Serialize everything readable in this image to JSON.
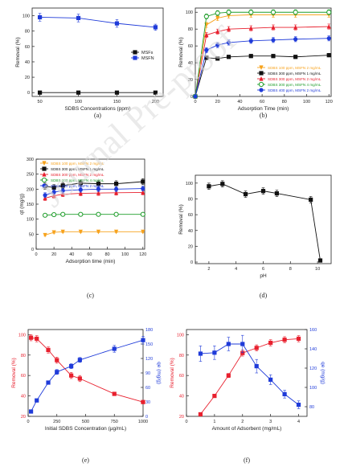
{
  "watermark": "Journal Pre-proof",
  "panels": [
    {
      "id": "a",
      "label": "(a)"
    },
    {
      "id": "b",
      "label": "(b)"
    },
    {
      "id": "c",
      "label": "(c)"
    },
    {
      "id": "d",
      "label": "(d)"
    },
    {
      "id": "e",
      "label": "(e)"
    },
    {
      "id": "f",
      "label": "(f)"
    }
  ],
  "chart_data": [
    {
      "panel": "a",
      "type": "line",
      "xlabel": "SDBS Concentrations (ppm)",
      "ylabel": "Removal (%)",
      "xlim": [
        40,
        210
      ],
      "ylim": [
        -5,
        110
      ],
      "xticks": [
        50,
        100,
        150,
        200
      ],
      "yticks": [
        0,
        20,
        40,
        60,
        80,
        100
      ],
      "legend": "right",
      "series": [
        {
          "name": "MSFs",
          "color": "#111111",
          "marker": "square",
          "x": [
            50,
            100,
            150,
            200
          ],
          "y": [
            0,
            0,
            0,
            0
          ],
          "err": [
            0,
            0,
            0,
            0
          ]
        },
        {
          "name": "MSFN",
          "color": "#1f3bd9",
          "marker": "square",
          "x": [
            50,
            100,
            150,
            200
          ],
          "y": [
            98,
            97,
            90,
            85
          ],
          "err": [
            5,
            5,
            5,
            4
          ]
        }
      ]
    },
    {
      "panel": "b",
      "type": "line",
      "xlabel": "Adsorption Time (min)",
      "ylabel": "Removal (%)",
      "xlim": [
        0,
        122
      ],
      "ylim": [
        0,
        105
      ],
      "xticks": [
        0,
        20,
        40,
        60,
        80,
        100,
        120
      ],
      "yticks": [
        0,
        20,
        40,
        60,
        80,
        100
      ],
      "legend": "bottom-right",
      "series": [
        {
          "name": "SDBS 100 ppm, MSFN 2 mg/mL",
          "color": "#f7a21b",
          "marker": "triangle-down",
          "x": [
            0,
            10,
            20,
            30,
            50,
            70,
            90,
            120
          ],
          "y": [
            0,
            85,
            93,
            96,
            97,
            97,
            97,
            97
          ],
          "err": [
            0,
            3,
            3,
            3,
            3,
            3,
            3,
            3
          ]
        },
        {
          "name": "SDBS 300 ppm, MSFN 1 mg/mL",
          "color": "#111111",
          "marker": "square",
          "x": [
            0,
            10,
            20,
            30,
            50,
            70,
            90,
            120
          ],
          "y": [
            0,
            46,
            45,
            47,
            48,
            48,
            47,
            49
          ],
          "err": [
            0,
            2,
            2,
            2,
            2,
            2,
            2,
            2
          ]
        },
        {
          "name": "SDBS 300 ppm, MSFN 2 mg/mL",
          "color": "#e8202e",
          "marker": "triangle",
          "x": [
            0,
            10,
            20,
            30,
            50,
            70,
            90,
            120
          ],
          "y": [
            0,
            73,
            77,
            80,
            81,
            82,
            82,
            83
          ],
          "err": [
            0,
            3,
            3,
            3,
            3,
            3,
            3,
            3
          ]
        },
        {
          "name": "SDBS 300 ppm, MSFN 4 mg/mL",
          "color": "#1f9d2b",
          "marker": "circle-open",
          "x": [
            0,
            10,
            20,
            30,
            50,
            70,
            90,
            120
          ],
          "y": [
            0,
            95,
            99,
            100,
            100,
            100,
            100,
            100
          ],
          "err": [
            0,
            3,
            3,
            3,
            3,
            3,
            3,
            3
          ]
        },
        {
          "name": "SDBS 400 ppm, MSFN 2 mg/mL",
          "color": "#1f3bd9",
          "marker": "circle",
          "x": [
            0,
            10,
            20,
            30,
            50,
            70,
            90,
            120
          ],
          "y": [
            0,
            55,
            61,
            64,
            66,
            67,
            68,
            69
          ],
          "err": [
            0,
            3,
            3,
            3,
            3,
            3,
            3,
            3
          ]
        }
      ]
    },
    {
      "panel": "c",
      "type": "line",
      "xlabel": "Adsorption time (min)",
      "ylabel": "qt (mg/g)",
      "xlim": [
        0,
        122
      ],
      "ylim": [
        0,
        300
      ],
      "xticks": [
        0,
        20,
        40,
        60,
        80,
        100,
        120
      ],
      "yticks": [
        0,
        50,
        100,
        150,
        200,
        250,
        300
      ],
      "legend": "top-left",
      "series": [
        {
          "name": "SDBS 100 ppm, MSFN 2 mg/mL",
          "color": "#f7a21b",
          "marker": "triangle-down",
          "x": [
            10,
            20,
            30,
            50,
            70,
            90,
            120
          ],
          "y": [
            47,
            56,
            58,
            58,
            58,
            58,
            58
          ],
          "err": [
            3,
            3,
            3,
            3,
            3,
            3,
            3
          ]
        },
        {
          "name": "SDBS 300 ppm, MSFN 1 mg/mL",
          "color": "#111111",
          "marker": "square",
          "x": [
            10,
            20,
            30,
            50,
            70,
            90,
            120
          ],
          "y": [
            210,
            205,
            212,
            220,
            218,
            218,
            225
          ],
          "err": [
            10,
            10,
            10,
            10,
            10,
            10,
            10
          ]
        },
        {
          "name": "SDBS 300 ppm, MSFN 2 mg/mL",
          "color": "#e8202e",
          "marker": "triangle",
          "x": [
            10,
            20,
            30,
            50,
            70,
            90,
            120
          ],
          "y": [
            170,
            178,
            183,
            186,
            187,
            188,
            189
          ],
          "err": [
            8,
            8,
            8,
            8,
            8,
            8,
            8
          ]
        },
        {
          "name": "SDBS 300 ppm, MSFN 4 mg/mL",
          "color": "#1f9d2b",
          "marker": "circle-open",
          "x": [
            10,
            20,
            30,
            50,
            70,
            90,
            120
          ],
          "y": [
            113,
            115,
            116,
            116,
            116,
            116,
            116
          ],
          "err": [
            3,
            3,
            3,
            3,
            3,
            3,
            3
          ]
        },
        {
          "name": "SDBS 400 ppm, MSFN 2 mg/mL",
          "color": "#1f3bd9",
          "marker": "circle",
          "x": [
            10,
            20,
            30,
            50,
            70,
            90,
            120
          ],
          "y": [
            180,
            190,
            195,
            198,
            200,
            200,
            202
          ],
          "err": [
            8,
            8,
            8,
            8,
            8,
            8,
            8
          ]
        }
      ]
    },
    {
      "panel": "d",
      "type": "line",
      "xlabel": "pH",
      "ylabel": "Removal (%)",
      "xlim": [
        1,
        11
      ],
      "ylim": [
        -2,
        110
      ],
      "xticks": [
        2,
        4,
        6,
        8,
        10
      ],
      "yticks": [
        0,
        20,
        40,
        60,
        80,
        100
      ],
      "legend": "none",
      "series": [
        {
          "name": "",
          "color": "#111111",
          "marker": "square",
          "x": [
            2,
            3,
            4.7,
            6,
            7,
            9.5,
            10.2
          ],
          "y": [
            96,
            99,
            86,
            90,
            87,
            79,
            2
          ],
          "err": [
            4,
            4,
            4,
            4,
            4,
            4,
            2
          ]
        }
      ]
    },
    {
      "panel": "e",
      "type": "line",
      "xlabel": "Initial SDBS Concentration (µg/mL)",
      "ylabel": "Removal (%)",
      "ylabel_right": "qe (mg/g)",
      "xlim": [
        0,
        1000
      ],
      "ylim": [
        20,
        105
      ],
      "ylim_right": [
        0,
        180
      ],
      "xticks": [
        0,
        250,
        500,
        750,
        1000
      ],
      "yticks": [
        20,
        40,
        60,
        80,
        100
      ],
      "yticks_right": [
        0,
        30,
        60,
        90,
        120,
        150,
        180
      ],
      "legend": "none",
      "series": [
        {
          "name": "",
          "axis": "left",
          "color": "#e8202e",
          "marker": "square",
          "x": [
            25,
            75,
            175,
            250,
            375,
            450,
            750,
            1000
          ],
          "y": [
            97,
            96,
            85,
            75,
            60,
            57,
            42,
            34
          ],
          "err": [
            3,
            3,
            3,
            3,
            3,
            3,
            1,
            1
          ]
        },
        {
          "name": "",
          "axis": "right",
          "color": "#1f3bd9",
          "marker": "square",
          "x": [
            25,
            75,
            175,
            250,
            375,
            450,
            750,
            1000
          ],
          "y": [
            10,
            33,
            70,
            92,
            104,
            117,
            140,
            158
          ],
          "err": [
            3,
            3,
            3,
            5,
            5,
            5,
            7,
            8
          ]
        }
      ]
    },
    {
      "panel": "f",
      "type": "line",
      "xlabel": "Amount of Adsorbent (mg/mL)",
      "ylabel": "Removal (%)",
      "ylabel_right": "qe (mg/g)",
      "xlim": [
        0,
        4.3
      ],
      "ylim": [
        20,
        105
      ],
      "ylim_right": [
        70,
        160
      ],
      "xticks": [
        0,
        1,
        2,
        3,
        4
      ],
      "yticks": [
        20,
        40,
        60,
        80,
        100
      ],
      "yticks_right": [
        80,
        100,
        120,
        140,
        160
      ],
      "legend": "none",
      "series": [
        {
          "name": "",
          "axis": "left",
          "color": "#e8202e",
          "marker": "square",
          "x": [
            0.5,
            1,
            1.5,
            2,
            2.5,
            3,
            3.5,
            4
          ],
          "y": [
            22,
            40,
            60,
            82,
            87,
            92,
            95,
            96
          ],
          "err": [
            1,
            1,
            2,
            3,
            3,
            3,
            3,
            3
          ]
        },
        {
          "name": "",
          "axis": "right",
          "color": "#1f3bd9",
          "marker": "square",
          "x": [
            0.5,
            1,
            1.5,
            2,
            2.5,
            3,
            3.5,
            4
          ],
          "y": [
            135,
            136,
            145,
            145,
            122,
            108,
            93,
            82
          ],
          "err": [
            8,
            7,
            7,
            9,
            7,
            5,
            4,
            4
          ]
        }
      ]
    }
  ]
}
